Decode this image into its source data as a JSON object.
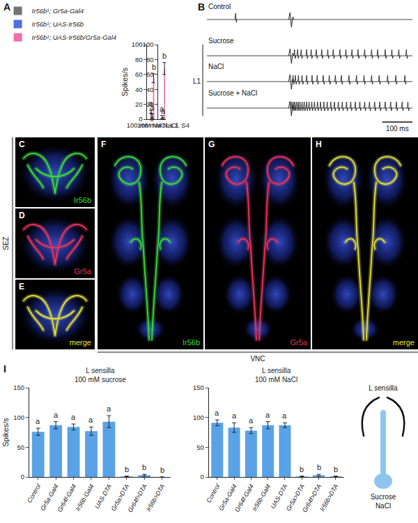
{
  "chart_data": [
    {
      "panel": "A",
      "type": "bar",
      "categories": [
        "100 mM NaCl, L1"
      ],
      "ylabel": "Spikes/s",
      "ylim": [
        0,
        100
      ],
      "yticks": [
        0,
        20,
        40,
        60,
        80,
        100
      ],
      "grid": false,
      "legend": "top left",
      "series": [
        {
          "name": "Ir56b¹; Gr5a-Gal4",
          "color": "#737373",
          "values": [
            10
          ],
          "error": [
            2
          ],
          "letters": [
            "a"
          ]
        },
        {
          "name": "Ir56b¹; UAS-Ir56b",
          "color": "#4f6fdc",
          "values": [
            4
          ],
          "error": [
            3
          ],
          "letters": [
            "a"
          ]
        },
        {
          "name": "Ir56b¹; UAS-Ir56b/Gr5a-Gal4",
          "color": "#ef6fae",
          "values": [
            55
          ],
          "error": [
            6
          ],
          "letters": [
            "b"
          ]
        }
      ]
    },
    {
      "type": "bar",
      "categories": [
        "100 mM NaCl, S4"
      ],
      "ylim": [
        0,
        100
      ],
      "yticks": [
        0,
        20,
        40,
        60,
        80,
        100
      ],
      "grid": false,
      "series": [
        {
          "name": "Ir56b¹; Gr5a-Gal4",
          "color": "#737373",
          "values": [
            3
          ],
          "error": [
            2
          ],
          "letters": [
            "a"
          ]
        },
        {
          "name": "Ir56b¹; UAS-Ir56b",
          "color": "#4f6fdc",
          "values": [
            1
          ],
          "error": [
            1
          ],
          "letters": [
            "a"
          ]
        },
        {
          "name": "Ir56b¹; UAS-Ir56b/Gr5a-Gal4",
          "color": "#ef6fae",
          "values": [
            68
          ],
          "error": [
            8
          ],
          "letters": [
            "b"
          ]
        }
      ]
    },
    {
      "panel": "I",
      "type": "bar",
      "title": "L sensilla",
      "subtitle": "100 mM sucrose",
      "ylabel": "Spikes/s",
      "categories": [
        "Control",
        "Gr5a-Gal4",
        "Gr64f-Gal4",
        "Ir56b-Gal4",
        "UAS-DTA",
        "Gr5a>DTA",
        "Gr64f>DTA",
        "Ir56b>DTA"
      ],
      "values": [
        76,
        87,
        84,
        77,
        93,
        1,
        3,
        0
      ],
      "error": [
        6,
        6,
        5,
        7,
        10,
        0.5,
        1.5,
        0
      ],
      "letters": [
        "a",
        "a",
        "a",
        "a",
        "a",
        "b",
        "b",
        "b"
      ],
      "color": "#5aa2e6",
      "ylim": [
        0,
        150
      ],
      "yticks": [
        0,
        50,
        100,
        150
      ],
      "grid": false
    },
    {
      "type": "bar",
      "title": "L sensilla",
      "subtitle": "100 mM NaCl",
      "categories": [
        "Control",
        "Gr5a-Gal4",
        "Gr64f-Gal4",
        "Ir56b-Gal4",
        "UAS-DTA",
        "Gr5a>DTA",
        "Gr64f>DTA",
        "Ir56b>DTA"
      ],
      "values": [
        91,
        83,
        78,
        87,
        87,
        1,
        3,
        1
      ],
      "error": [
        5,
        8,
        5,
        6,
        4,
        0.5,
        1.5,
        0.5
      ],
      "letters": [
        "a",
        "a",
        "a",
        "a",
        "a",
        "b",
        "b",
        "b"
      ],
      "color": "#5aa2e6",
      "ylim": [
        0,
        150
      ],
      "yticks": [
        0,
        50,
        100,
        150
      ],
      "grid": false
    }
  ],
  "panel_B": {
    "panel": "B",
    "row_label": "L1",
    "duration_ms": 680,
    "contact_ms": 275,
    "scale_bar": {
      "value": 100,
      "label": "100 ms"
    },
    "traces": [
      {
        "name": "Control",
        "spikes_ms": [
          95
        ]
      },
      {
        "name": "Sucrose",
        "spikes_ms": [
          290,
          300,
          312,
          330,
          345,
          362,
          380,
          400,
          418,
          440,
          460,
          480,
          500,
          522,
          545,
          565,
          590,
          612,
          635,
          660
        ]
      },
      {
        "name": "NaCl",
        "spikes_ms": [
          285,
          293,
          303,
          315,
          330,
          348,
          365,
          385,
          405,
          425,
          445,
          470,
          495,
          520,
          545,
          570,
          598,
          625,
          655
        ]
      },
      {
        "name": "Sucrose + NaCl",
        "spikes_ms": [
          280,
          285,
          290,
          296,
          302,
          308,
          315,
          322,
          330,
          338,
          347,
          356,
          366,
          376,
          387,
          398,
          410,
          422,
          435,
          448,
          462,
          476,
          491,
          506,
          522,
          538,
          555,
          572,
          590,
          608,
          627,
          646,
          665
        ]
      }
    ]
  },
  "images": {
    "sez": {
      "label": "SEZ",
      "panels": [
        {
          "panel": "C",
          "channel": "Ir56b",
          "color": "#3ddc3d"
        },
        {
          "panel": "D",
          "channel": "Gr5a",
          "color": "#e8365a"
        },
        {
          "panel": "E",
          "channel": "merge",
          "color": "#e6e23a"
        }
      ]
    },
    "vnc": {
      "label": "VNC",
      "panels": [
        {
          "panel": "F",
          "channel": "Ir56b",
          "color": "#3ddc3d"
        },
        {
          "panel": "G",
          "channel": "Gr5a",
          "color": "#e8365a"
        },
        {
          "panel": "H",
          "channel": "merge",
          "color": "#e6e23a"
        }
      ]
    }
  },
  "schematic": {
    "title": "L sensilla",
    "stimuli": [
      "Sucrose",
      "NaCl"
    ],
    "color": "#8ec5ee"
  }
}
